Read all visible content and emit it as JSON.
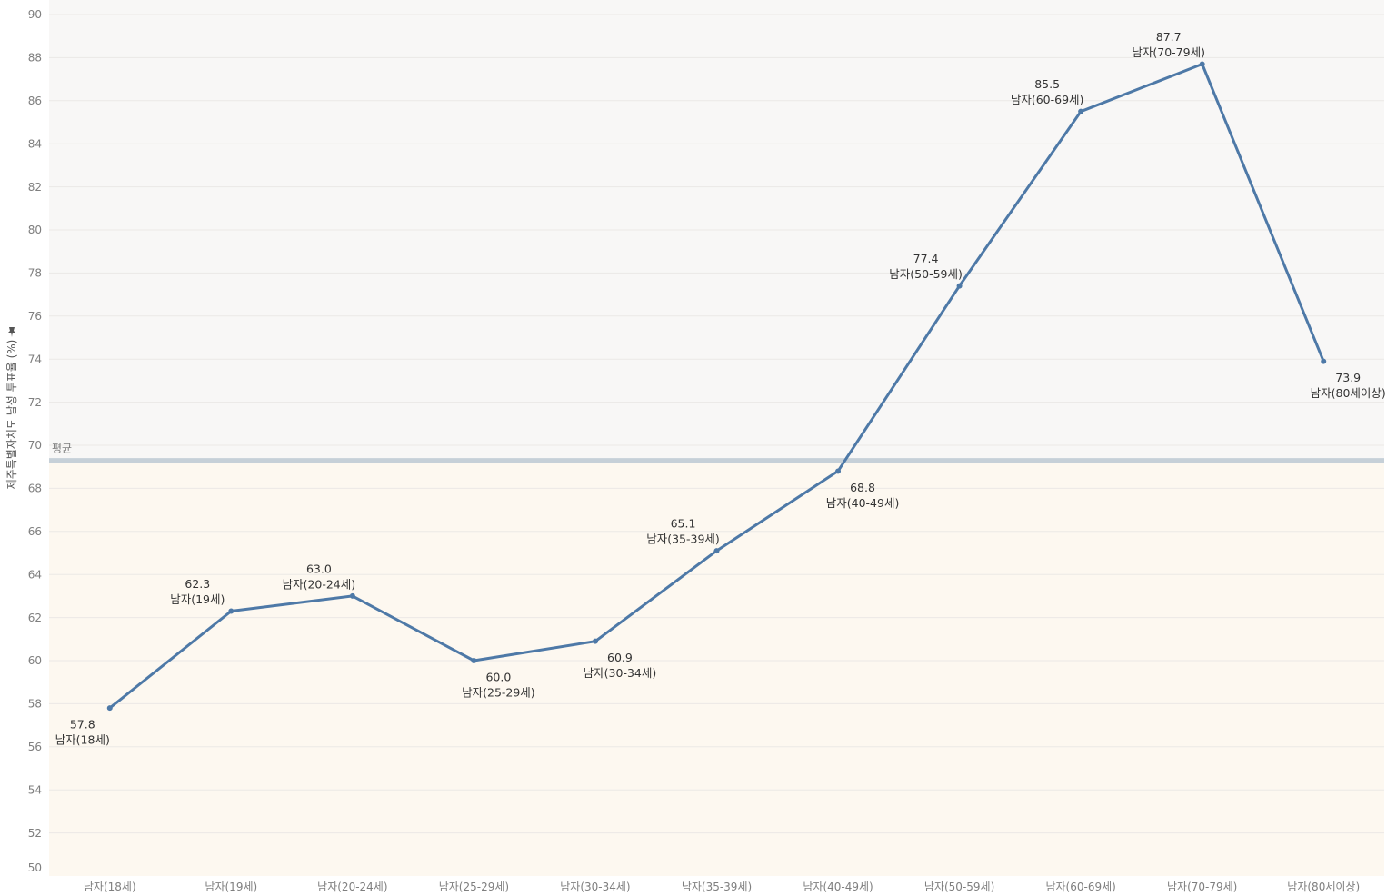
{
  "chart_data": {
    "type": "line",
    "title": "",
    "ylabel": "제주특별자치도 남성 투표율 (%)",
    "ylabel_icon": "pin-icon",
    "xlabel": "",
    "ylim": [
      50,
      90
    ],
    "y_ticks": [
      50,
      52,
      54,
      56,
      58,
      60,
      62,
      64,
      66,
      68,
      70,
      72,
      74,
      76,
      78,
      80,
      82,
      84,
      86,
      88,
      90
    ],
    "categories": [
      "남자(18세)",
      "남자(19세)",
      "남자(20-24세)",
      "남자(25-29세)",
      "남자(30-34세)",
      "남자(35-39세)",
      "남자(40-49세)",
      "남자(50-59세)",
      "남자(60-69세)",
      "남자(70-79세)",
      "남자(80세이상)"
    ],
    "series": [
      {
        "values": [
          57.8,
          62.3,
          63.0,
          60.0,
          60.9,
          65.1,
          68.8,
          77.4,
          85.5,
          87.7,
          73.9
        ],
        "value_labels": [
          "57.8",
          "62.3",
          "63.0",
          "60.0",
          "60.9",
          "65.1",
          "68.8",
          "77.4",
          "85.5",
          "87.7",
          "73.9"
        ]
      }
    ],
    "label_placement": [
      "below",
      "above",
      "above",
      "below",
      "below",
      "above",
      "below",
      "above",
      "above",
      "above",
      "below"
    ],
    "reference_line": {
      "label": "평균",
      "value": 69.3
    },
    "grid": true,
    "colors": {
      "line": "#4e79a7",
      "reference_line": "#c6d0d8",
      "band_above": "#f8f7f6",
      "band_below": "#fdf8f0",
      "gridline": "#ebe9e6"
    }
  }
}
